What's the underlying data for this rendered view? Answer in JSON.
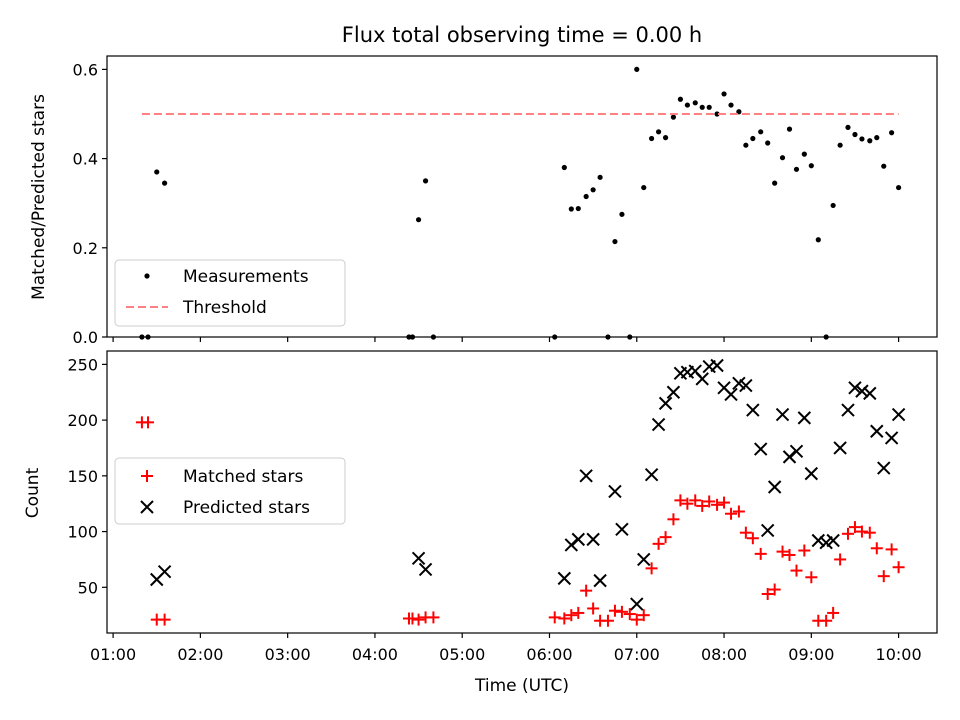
{
  "chart_data": {
    "type": "scatter",
    "title": "Flux total observing time = 0.00 h",
    "xlabel": "Time (UTC)",
    "x_ticks": [
      {
        "value": 1,
        "label": "01:00"
      },
      {
        "value": 2,
        "label": "02:00"
      },
      {
        "value": 3,
        "label": "03:00"
      },
      {
        "value": 4,
        "label": "04:00"
      },
      {
        "value": 5,
        "label": "05:00"
      },
      {
        "value": 6,
        "label": "06:00"
      },
      {
        "value": 7,
        "label": "07:00"
      },
      {
        "value": 8,
        "label": "08:00"
      },
      {
        "value": 9,
        "label": "09:00"
      },
      {
        "value": 10,
        "label": "10:00"
      }
    ],
    "xlim": [
      0.93,
      10.44
    ],
    "panels": [
      {
        "ylabel": "Matched/Predicted stars",
        "ylim": [
          0,
          0.63
        ],
        "y_ticks": [
          {
            "value": 0.0,
            "label": "0.0"
          },
          {
            "value": 0.2,
            "label": "0.2"
          },
          {
            "value": 0.4,
            "label": "0.4"
          },
          {
            "value": 0.6,
            "label": "0.6"
          }
        ],
        "legend_position": "lower-left",
        "series": [
          {
            "name": "Measurements",
            "marker": "dot",
            "color": "#000000",
            "points": [
              [
                1.33,
                0.0
              ],
              [
                1.4,
                0.0
              ],
              [
                1.5,
                0.37
              ],
              [
                1.59,
                0.345
              ],
              [
                4.39,
                0.0
              ],
              [
                4.43,
                0.0
              ],
              [
                4.5,
                0.263
              ],
              [
                4.58,
                0.35
              ],
              [
                4.67,
                0.0
              ],
              [
                6.06,
                0.0
              ],
              [
                6.17,
                0.38
              ],
              [
                6.25,
                0.287
              ],
              [
                6.33,
                0.288
              ],
              [
                6.42,
                0.315
              ],
              [
                6.5,
                0.33
              ],
              [
                6.58,
                0.358
              ],
              [
                6.67,
                0.0
              ],
              [
                6.75,
                0.214
              ],
              [
                6.83,
                0.275
              ],
              [
                6.92,
                0.0
              ],
              [
                7.0,
                0.6
              ],
              [
                7.08,
                0.335
              ],
              [
                7.17,
                0.445
              ],
              [
                7.25,
                0.46
              ],
              [
                7.33,
                0.447
              ],
              [
                7.42,
                0.493
              ],
              [
                7.5,
                0.533
              ],
              [
                7.58,
                0.52
              ],
              [
                7.67,
                0.525
              ],
              [
                7.75,
                0.515
              ],
              [
                7.83,
                0.515
              ],
              [
                7.92,
                0.5
              ],
              [
                8.0,
                0.545
              ],
              [
                8.08,
                0.52
              ],
              [
                8.17,
                0.505
              ],
              [
                8.25,
                0.43
              ],
              [
                8.33,
                0.445
              ],
              [
                8.42,
                0.46
              ],
              [
                8.5,
                0.435
              ],
              [
                8.58,
                0.345
              ],
              [
                8.67,
                0.402
              ],
              [
                8.75,
                0.466
              ],
              [
                8.83,
                0.376
              ],
              [
                8.92,
                0.41
              ],
              [
                9.0,
                0.384
              ],
              [
                9.08,
                0.218
              ],
              [
                9.17,
                0.0
              ],
              [
                9.25,
                0.295
              ],
              [
                9.33,
                0.43
              ],
              [
                9.42,
                0.47
              ],
              [
                9.5,
                0.454
              ],
              [
                9.58,
                0.444
              ],
              [
                9.67,
                0.44
              ],
              [
                9.75,
                0.447
              ],
              [
                9.83,
                0.383
              ],
              [
                9.92,
                0.458
              ],
              [
                10.0,
                0.335
              ]
            ]
          },
          {
            "name": "Threshold",
            "marker": "dashed-line",
            "color": "#ff8080",
            "points": [
              [
                1.33,
                0.5
              ],
              [
                10.0,
                0.5
              ]
            ]
          }
        ]
      },
      {
        "ylabel": "Count",
        "ylim": [
          9,
          262
        ],
        "y_ticks": [
          {
            "value": 50,
            "label": "50"
          },
          {
            "value": 100,
            "label": "100"
          },
          {
            "value": 150,
            "label": "150"
          },
          {
            "value": 200,
            "label": "200"
          },
          {
            "value": 250,
            "label": "250"
          }
        ],
        "legend_position": "center-left",
        "series": [
          {
            "name": "Matched stars",
            "marker": "plus",
            "color": "#ff0000",
            "points": [
              [
                1.33,
                198
              ],
              [
                1.4,
                198
              ],
              [
                1.5,
                21
              ],
              [
                1.59,
                21
              ],
              [
                4.39,
                22
              ],
              [
                4.43,
                22
              ],
              [
                4.5,
                21
              ],
              [
                4.58,
                23
              ],
              [
                4.67,
                23
              ],
              [
                6.06,
                23
              ],
              [
                6.17,
                22
              ],
              [
                6.25,
                25
              ],
              [
                6.33,
                27
              ],
              [
                6.42,
                47
              ],
              [
                6.5,
                31
              ],
              [
                6.58,
                20
              ],
              [
                6.67,
                20
              ],
              [
                6.75,
                29
              ],
              [
                6.83,
                28
              ],
              [
                6.92,
                26
              ],
              [
                7.0,
                21
              ],
              [
                7.08,
                25
              ],
              [
                7.17,
                67
              ],
              [
                7.25,
                89
              ],
              [
                7.33,
                95
              ],
              [
                7.42,
                111
              ],
              [
                7.5,
                128
              ],
              [
                7.58,
                125
              ],
              [
                7.67,
                128
              ],
              [
                7.75,
                123
              ],
              [
                7.83,
                127
              ],
              [
                7.92,
                124
              ],
              [
                8.0,
                126
              ],
              [
                8.08,
                116
              ],
              [
                8.17,
                118
              ],
              [
                8.25,
                99
              ],
              [
                8.33,
                94
              ],
              [
                8.42,
                80
              ],
              [
                8.5,
                44
              ],
              [
                8.58,
                48
              ],
              [
                8.67,
                82
              ],
              [
                8.75,
                79
              ],
              [
                8.83,
                65
              ],
              [
                8.92,
                83
              ],
              [
                9.0,
                59
              ],
              [
                9.08,
                20
              ],
              [
                9.17,
                20
              ],
              [
                9.25,
                27
              ],
              [
                9.33,
                75
              ],
              [
                9.42,
                98
              ],
              [
                9.5,
                104
              ],
              [
                9.58,
                100
              ],
              [
                9.67,
                99
              ],
              [
                9.75,
                85
              ],
              [
                9.83,
                60
              ],
              [
                9.92,
                84
              ],
              [
                10.0,
                68
              ]
            ]
          },
          {
            "name": "Predicted stars",
            "marker": "x",
            "color": "#000000",
            "points": [
              [
                1.5,
                57
              ],
              [
                1.59,
                64
              ],
              [
                4.5,
                76
              ],
              [
                4.58,
                66
              ],
              [
                6.17,
                58
              ],
              [
                6.25,
                88
              ],
              [
                6.33,
                93
              ],
              [
                6.42,
                150
              ],
              [
                6.5,
                93
              ],
              [
                6.58,
                56
              ],
              [
                6.75,
                136
              ],
              [
                6.83,
                102
              ],
              [
                7.0,
                35
              ],
              [
                7.08,
                75
              ],
              [
                7.17,
                151
              ],
              [
                7.25,
                196
              ],
              [
                7.33,
                215
              ],
              [
                7.42,
                225
              ],
              [
                7.5,
                242
              ],
              [
                7.58,
                243
              ],
              [
                7.67,
                244
              ],
              [
                7.75,
                237
              ],
              [
                7.83,
                248
              ],
              [
                7.92,
                249
              ],
              [
                8.0,
                229
              ],
              [
                8.08,
                223
              ],
              [
                8.17,
                233
              ],
              [
                8.25,
                231
              ],
              [
                8.33,
                209
              ],
              [
                8.42,
                174
              ],
              [
                8.5,
                101
              ],
              [
                8.58,
                140
              ],
              [
                8.67,
                205
              ],
              [
                8.75,
                167
              ],
              [
                8.83,
                172
              ],
              [
                8.92,
                202
              ],
              [
                9.0,
                152
              ],
              [
                9.08,
                92
              ],
              [
                9.17,
                90
              ],
              [
                9.25,
                92
              ],
              [
                9.33,
                175
              ],
              [
                9.42,
                209
              ],
              [
                9.5,
                229
              ],
              [
                9.58,
                226
              ],
              [
                9.67,
                224
              ],
              [
                9.75,
                190
              ],
              [
                9.83,
                157
              ],
              [
                9.92,
                184
              ],
              [
                10.0,
                205
              ]
            ]
          }
        ]
      }
    ]
  }
}
